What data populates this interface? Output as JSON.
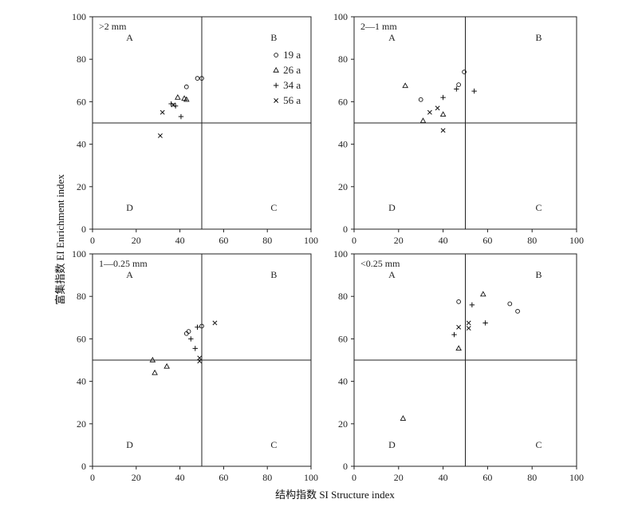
{
  "figure": {
    "xlabel": "结构指数 SI Structure index",
    "ylabel": "富集指数 EI Enrichment index"
  },
  "chart_data": [
    {
      "type": "scatter",
      "title": ">2  mm",
      "xlim": [
        0,
        100
      ],
      "ylim": [
        0,
        100
      ],
      "xticks": [
        0,
        20,
        40,
        60,
        80,
        100
      ],
      "yticks": [
        0,
        20,
        40,
        60,
        80,
        100
      ],
      "reference_lines": {
        "x": 50,
        "y": 50
      },
      "quadrant_labels": [
        "A",
        "B",
        "C",
        "D"
      ],
      "legend": {
        "placement": "top-right",
        "show": true
      },
      "series": [
        {
          "name": "19 a",
          "marker": "circle",
          "points": [
            [
              43,
              67
            ],
            [
              48,
              71
            ],
            [
              50,
              71
            ]
          ]
        },
        {
          "name": "26 a",
          "marker": "triangle",
          "points": [
            [
              39,
              62
            ],
            [
              42,
              61.5
            ],
            [
              43,
              61
            ]
          ]
        },
        {
          "name": "34 a",
          "marker": "plus",
          "points": [
            [
              36,
              59
            ],
            [
              38,
              58
            ],
            [
              40.5,
              53
            ]
          ]
        },
        {
          "name": "56 a",
          "marker": "cross",
          "points": [
            [
              32,
              55
            ],
            [
              37,
              58.5
            ],
            [
              31,
              44
            ]
          ]
        }
      ]
    },
    {
      "type": "scatter",
      "title": "2—1  mm",
      "xlim": [
        0,
        100
      ],
      "ylim": [
        0,
        100
      ],
      "xticks": [
        0,
        20,
        40,
        60,
        80,
        100
      ],
      "yticks": [
        0,
        20,
        40,
        60,
        80,
        100
      ],
      "reference_lines": {
        "x": 50,
        "y": 50
      },
      "quadrant_labels": [
        "A",
        "B",
        "C",
        "D"
      ],
      "legend": {
        "show": false
      },
      "series": [
        {
          "name": "19 a",
          "marker": "circle",
          "points": [
            [
              30,
              61
            ],
            [
              47,
              68
            ],
            [
              49.5,
              74
            ]
          ]
        },
        {
          "name": "26 a",
          "marker": "triangle",
          "points": [
            [
              23,
              67.5
            ],
            [
              31,
              51
            ],
            [
              40,
              54
            ]
          ]
        },
        {
          "name": "34 a",
          "marker": "plus",
          "points": [
            [
              40,
              62
            ],
            [
              46,
              66
            ],
            [
              54,
              65
            ]
          ]
        },
        {
          "name": "56 a",
          "marker": "cross",
          "points": [
            [
              34,
              55
            ],
            [
              37.5,
              57
            ],
            [
              40,
              46.5
            ]
          ]
        }
      ]
    },
    {
      "type": "scatter",
      "title": "1—0.25  mm",
      "xlim": [
        0,
        100
      ],
      "ylim": [
        0,
        100
      ],
      "xticks": [
        0,
        20,
        40,
        60,
        80,
        100
      ],
      "yticks": [
        0,
        20,
        40,
        60,
        80,
        100
      ],
      "reference_lines": {
        "x": 50,
        "y": 50
      },
      "quadrant_labels": [
        "A",
        "B",
        "C",
        "D"
      ],
      "legend": {
        "show": false
      },
      "series": [
        {
          "name": "19 a",
          "marker": "circle",
          "points": [
            [
              43,
              62.5
            ],
            [
              44,
              63.5
            ],
            [
              50,
              66
            ]
          ]
        },
        {
          "name": "26 a",
          "marker": "triangle",
          "points": [
            [
              27.5,
              50
            ],
            [
              28.5,
              44
            ],
            [
              34,
              47
            ]
          ]
        },
        {
          "name": "34 a",
          "marker": "plus",
          "points": [
            [
              45,
              60
            ],
            [
              47,
              55.5
            ],
            [
              48,
              65.5
            ]
          ]
        },
        {
          "name": "56 a",
          "marker": "cross",
          "points": [
            [
              49,
              51
            ],
            [
              49,
              49.5
            ],
            [
              56,
              67.5
            ]
          ]
        }
      ]
    },
    {
      "type": "scatter",
      "title": "<0.25  mm",
      "xlim": [
        0,
        100
      ],
      "ylim": [
        0,
        100
      ],
      "xticks": [
        0,
        20,
        40,
        60,
        80,
        100
      ],
      "yticks": [
        0,
        20,
        40,
        60,
        80,
        100
      ],
      "reference_lines": {
        "x": 50,
        "y": 50
      },
      "quadrant_labels": [
        "A",
        "B",
        "C",
        "D"
      ],
      "legend": {
        "show": false
      },
      "series": [
        {
          "name": "19 a",
          "marker": "circle",
          "points": [
            [
              47,
              77.5
            ],
            [
              70,
              76.5
            ],
            [
              73.5,
              73
            ]
          ]
        },
        {
          "name": "26 a",
          "marker": "triangle",
          "points": [
            [
              22,
              22.5
            ],
            [
              47,
              55.5
            ],
            [
              58,
              81
            ]
          ]
        },
        {
          "name": "34 a",
          "marker": "plus",
          "points": [
            [
              45,
              62
            ],
            [
              53,
              76
            ],
            [
              59,
              67.5
            ]
          ]
        },
        {
          "name": "56 a",
          "marker": "cross",
          "points": [
            [
              47,
              65.5
            ],
            [
              51.5,
              65
            ],
            [
              51.5,
              67.5
            ]
          ]
        }
      ]
    }
  ]
}
